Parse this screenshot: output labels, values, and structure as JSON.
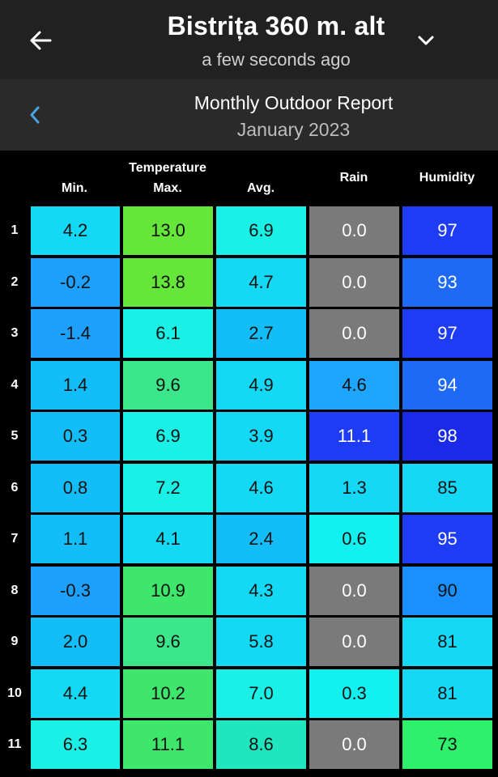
{
  "header": {
    "station_name": "Bistrița 360 m. alt",
    "last_updated": "a few seconds ago",
    "icons": {
      "back": "arrow-left-icon",
      "dropdown": "chevron-down-icon"
    }
  },
  "report": {
    "title": "Monthly Outdoor Report",
    "period": "January 2023",
    "prev_icon": "chevron-left-icon"
  },
  "columns": {
    "group_label": "Temperature",
    "min": "Min.",
    "max": "Max.",
    "avg": "Avg.",
    "rain": "Rain",
    "humidity": "Humidity"
  },
  "rows": [
    {
      "day": "1",
      "min": "4.2",
      "max": "13.0",
      "avg": "6.9",
      "rain": "0.0",
      "humidity": "97"
    },
    {
      "day": "2",
      "min": "-0.2",
      "max": "13.8",
      "avg": "4.7",
      "rain": "0.0",
      "humidity": "93"
    },
    {
      "day": "3",
      "min": "-1.4",
      "max": "6.1",
      "avg": "2.7",
      "rain": "0.0",
      "humidity": "97"
    },
    {
      "day": "4",
      "min": "1.4",
      "max": "9.6",
      "avg": "4.9",
      "rain": "4.6",
      "humidity": "94"
    },
    {
      "day": "5",
      "min": "0.3",
      "max": "6.9",
      "avg": "3.9",
      "rain": "11.1",
      "humidity": "98"
    },
    {
      "day": "6",
      "min": "0.8",
      "max": "7.2",
      "avg": "4.6",
      "rain": "1.3",
      "humidity": "85"
    },
    {
      "day": "7",
      "min": "1.1",
      "max": "4.1",
      "avg": "2.4",
      "rain": "0.6",
      "humidity": "95"
    },
    {
      "day": "8",
      "min": "-0.3",
      "max": "10.9",
      "avg": "4.3",
      "rain": "0.0",
      "humidity": "90"
    },
    {
      "day": "9",
      "min": "2.0",
      "max": "9.6",
      "avg": "5.8",
      "rain": "0.0",
      "humidity": "81"
    },
    {
      "day": "10",
      "min": "4.4",
      "max": "10.2",
      "avg": "7.0",
      "rain": "0.3",
      "humidity": "81"
    },
    {
      "day": "11",
      "min": "6.3",
      "max": "11.1",
      "avg": "8.6",
      "rain": "0.0",
      "humidity": "73"
    }
  ],
  "colors": {
    "header_bg": "#212121",
    "subheader_bg": "#2a2a2a",
    "accent_blue": "#4aa3df",
    "temp_scale": [
      {
        "threshold": -2,
        "color": "#1ea0ff"
      },
      {
        "threshold": 0,
        "color": "#12bdf8"
      },
      {
        "threshold": 3,
        "color": "#14d9f5"
      },
      {
        "threshold": 6,
        "color": "#1af0e6"
      },
      {
        "threshold": 8,
        "color": "#1fe6bf"
      },
      {
        "threshold": 9,
        "color": "#3ce68a"
      },
      {
        "threshold": 10,
        "color": "#3ee66b"
      },
      {
        "threshold": 12,
        "color": "#66e63a"
      }
    ],
    "rain_scale": [
      {
        "threshold": 0,
        "color": "#7a7a7a"
      },
      {
        "threshold": 0.1,
        "color": "#12f0f0"
      },
      {
        "threshold": 1,
        "color": "#14d8f5"
      },
      {
        "threshold": 3,
        "color": "#1ea6ff"
      },
      {
        "threshold": 8,
        "color": "#1f3cf5"
      }
    ],
    "humidity_scale": [
      {
        "threshold": 0,
        "color": "#2ef06a"
      },
      {
        "threshold": 78,
        "color": "#14d8f5"
      },
      {
        "threshold": 88,
        "color": "#1a90ff"
      },
      {
        "threshold": 92,
        "color": "#1f6af5"
      },
      {
        "threshold": 95,
        "color": "#1f3cf5"
      },
      {
        "threshold": 98,
        "color": "#1a2ae8"
      }
    ]
  }
}
